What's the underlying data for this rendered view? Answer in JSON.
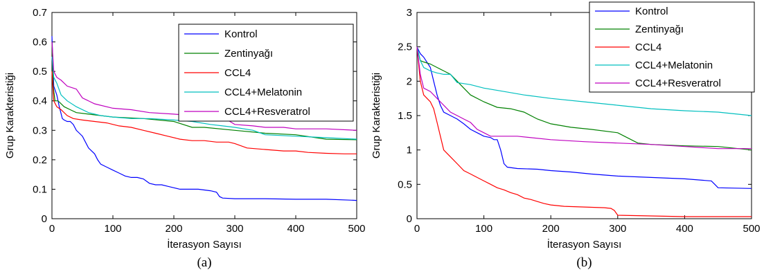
{
  "chart_data": [
    {
      "type": "line",
      "caption": "(a)",
      "xlabel": "İterasyon Sayısı",
      "ylabel": "Grup Karakteristiği",
      "xlim": [
        0,
        500
      ],
      "ylim": [
        0,
        0.7
      ],
      "xticks": [
        "0",
        "100",
        "200",
        "300",
        "400",
        "500"
      ],
      "yticks": [
        "0",
        "0.1",
        "0.2",
        "0.3",
        "0.4",
        "0.5",
        "0.6",
        "0.7"
      ],
      "legend_position": "top-right",
      "grid": false,
      "series": [
        {
          "name": "Kontrol",
          "color": "#0000ff",
          "x": [
            0,
            3,
            8,
            12,
            17,
            20,
            25,
            30,
            35,
            40,
            45,
            50,
            55,
            60,
            65,
            70,
            75,
            80,
            90,
            100,
            110,
            120,
            130,
            140,
            150,
            160,
            170,
            180,
            190,
            200,
            210,
            220,
            240,
            260,
            270,
            275,
            280,
            300,
            350,
            400,
            450,
            490,
            500
          ],
          "y": [
            0.62,
            0.45,
            0.42,
            0.38,
            0.34,
            0.335,
            0.33,
            0.33,
            0.32,
            0.3,
            0.29,
            0.28,
            0.26,
            0.24,
            0.23,
            0.22,
            0.2,
            0.185,
            0.175,
            0.165,
            0.155,
            0.145,
            0.14,
            0.14,
            0.135,
            0.12,
            0.115,
            0.115,
            0.11,
            0.105,
            0.1,
            0.1,
            0.1,
            0.095,
            0.09,
            0.075,
            0.07,
            0.068,
            0.068,
            0.066,
            0.066,
            0.063,
            0.062
          ]
        },
        {
          "name": "Zentinyağı",
          "color": "#008000",
          "x": [
            0,
            2,
            5,
            10,
            20,
            30,
            40,
            60,
            80,
            100,
            150,
            200,
            230,
            250,
            300,
            350,
            400,
            450,
            500
          ],
          "y": [
            0.6,
            0.45,
            0.4,
            0.4,
            0.38,
            0.37,
            0.36,
            0.355,
            0.35,
            0.345,
            0.34,
            0.33,
            0.31,
            0.31,
            0.3,
            0.29,
            0.285,
            0.27,
            0.268
          ]
        },
        {
          "name": "CCL4",
          "color": "#ff0000",
          "x": [
            0,
            3,
            8,
            15,
            25,
            35,
            50,
            70,
            90,
            110,
            130,
            150,
            170,
            190,
            210,
            230,
            250,
            270,
            290,
            300,
            320,
            350,
            380,
            400,
            420,
            450,
            480,
            500
          ],
          "y": [
            0.5,
            0.4,
            0.38,
            0.37,
            0.35,
            0.34,
            0.335,
            0.33,
            0.325,
            0.315,
            0.31,
            0.3,
            0.29,
            0.28,
            0.27,
            0.265,
            0.265,
            0.26,
            0.26,
            0.255,
            0.24,
            0.235,
            0.23,
            0.23,
            0.225,
            0.222,
            0.22,
            0.22
          ]
        },
        {
          "name": "CCL4+Melatonin",
          "color": "#00bfbf",
          "x": [
            0,
            3,
            8,
            15,
            25,
            40,
            60,
            80,
            100,
            130,
            160,
            200,
            230,
            260,
            280,
            300,
            330,
            350,
            400,
            450,
            500
          ],
          "y": [
            0.55,
            0.48,
            0.46,
            0.42,
            0.4,
            0.38,
            0.36,
            0.35,
            0.345,
            0.34,
            0.34,
            0.335,
            0.33,
            0.32,
            0.315,
            0.31,
            0.3,
            0.285,
            0.28,
            0.275,
            0.27
          ]
        },
        {
          "name": "CCL4+Resveratrol",
          "color": "#bf00bf",
          "x": [
            0,
            3,
            8,
            15,
            25,
            40,
            50,
            70,
            100,
            130,
            160,
            200,
            230,
            260,
            280,
            300,
            330,
            350,
            380,
            400,
            450,
            500
          ],
          "y": [
            0.6,
            0.5,
            0.48,
            0.47,
            0.45,
            0.44,
            0.41,
            0.39,
            0.375,
            0.37,
            0.36,
            0.355,
            0.35,
            0.345,
            0.345,
            0.32,
            0.315,
            0.31,
            0.31,
            0.305,
            0.305,
            0.3
          ]
        }
      ]
    },
    {
      "type": "line",
      "caption": "(b)",
      "xlabel": "İterasyon Sayısı",
      "ylabel": "Grup Karakteristiği",
      "xlim": [
        0,
        500
      ],
      "ylim": [
        0,
        3
      ],
      "xticks": [
        "0",
        "100",
        "200",
        "300",
        "400",
        "500"
      ],
      "yticks": [
        "0",
        "0.5",
        "1",
        "1.5",
        "2",
        "2.5",
        "3"
      ],
      "legend_position": "top-right",
      "grid": false,
      "series": [
        {
          "name": "Kontrol",
          "color": "#0000ff",
          "x": [
            0,
            5,
            10,
            20,
            25,
            30,
            35,
            40,
            50,
            60,
            70,
            80,
            90,
            100,
            110,
            115,
            120,
            125,
            130,
            135,
            150,
            180,
            200,
            230,
            260,
            300,
            350,
            400,
            440,
            445,
            450,
            500
          ],
          "y": [
            2.5,
            2.4,
            2.35,
            2.2,
            2.0,
            1.8,
            1.65,
            1.55,
            1.5,
            1.45,
            1.38,
            1.3,
            1.25,
            1.2,
            1.18,
            1.15,
            1.15,
            1.0,
            0.8,
            0.75,
            0.73,
            0.72,
            0.7,
            0.68,
            0.65,
            0.62,
            0.6,
            0.58,
            0.55,
            0.5,
            0.45,
            0.44
          ]
        },
        {
          "name": "Zentinyağı",
          "color": "#008000",
          "x": [
            0,
            5,
            10,
            20,
            30,
            40,
            50,
            60,
            70,
            80,
            100,
            120,
            140,
            160,
            180,
            200,
            230,
            260,
            300,
            310,
            330,
            350,
            400,
            450,
            500
          ],
          "y": [
            2.5,
            2.3,
            2.28,
            2.25,
            2.2,
            2.15,
            2.1,
            2.0,
            1.9,
            1.8,
            1.7,
            1.62,
            1.6,
            1.55,
            1.45,
            1.38,
            1.33,
            1.3,
            1.25,
            1.2,
            1.1,
            1.08,
            1.06,
            1.05,
            1.0
          ]
        },
        {
          "name": "CCL4",
          "color": "#ff0000",
          "x": [
            0,
            5,
            10,
            15,
            20,
            25,
            30,
            35,
            40,
            50,
            60,
            70,
            80,
            90,
            100,
            110,
            120,
            130,
            140,
            150,
            160,
            170,
            180,
            190,
            200,
            220,
            250,
            280,
            290,
            295,
            300,
            350,
            400,
            450,
            500
          ],
          "y": [
            2.5,
            2.0,
            1.8,
            1.75,
            1.7,
            1.6,
            1.4,
            1.2,
            1.0,
            0.9,
            0.8,
            0.7,
            0.65,
            0.6,
            0.55,
            0.5,
            0.45,
            0.42,
            0.38,
            0.35,
            0.3,
            0.28,
            0.25,
            0.22,
            0.2,
            0.18,
            0.17,
            0.16,
            0.15,
            0.12,
            0.05,
            0.04,
            0.03,
            0.03,
            0.03
          ]
        },
        {
          "name": "CCL4+Melatonin",
          "color": "#00bfbf",
          "x": [
            0,
            5,
            10,
            20,
            30,
            40,
            50,
            60,
            80,
            100,
            130,
            160,
            200,
            250,
            300,
            350,
            400,
            450,
            500
          ],
          "y": [
            2.5,
            2.3,
            2.2,
            2.15,
            2.12,
            2.1,
            2.1,
            1.98,
            1.95,
            1.9,
            1.85,
            1.8,
            1.75,
            1.7,
            1.65,
            1.6,
            1.57,
            1.55,
            1.5
          ]
        },
        {
          "name": "CCL4+Resveratrol",
          "color": "#bf00bf",
          "x": [
            0,
            5,
            10,
            20,
            30,
            40,
            50,
            60,
            70,
            80,
            90,
            100,
            110,
            130,
            150,
            200,
            250,
            300,
            350,
            400,
            450,
            500
          ],
          "y": [
            2.5,
            2.1,
            1.9,
            1.85,
            1.75,
            1.65,
            1.55,
            1.5,
            1.45,
            1.4,
            1.3,
            1.25,
            1.2,
            1.2,
            1.2,
            1.15,
            1.12,
            1.1,
            1.08,
            1.05,
            1.02,
            1.02
          ]
        }
      ]
    }
  ]
}
